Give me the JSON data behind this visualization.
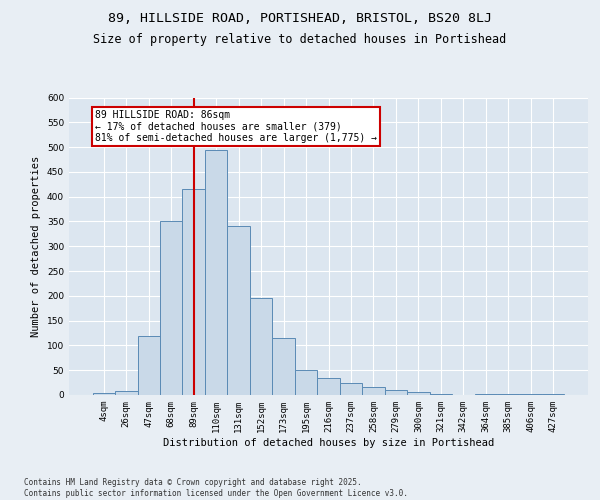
{
  "title_line1": "89, HILLSIDE ROAD, PORTISHEAD, BRISTOL, BS20 8LJ",
  "title_line2": "Size of property relative to detached houses in Portishead",
  "xlabel": "Distribution of detached houses by size in Portishead",
  "ylabel": "Number of detached properties",
  "footer": "Contains HM Land Registry data © Crown copyright and database right 2025.\nContains public sector information licensed under the Open Government Licence v3.0.",
  "bin_labels": [
    "4sqm",
    "26sqm",
    "47sqm",
    "68sqm",
    "89sqm",
    "110sqm",
    "131sqm",
    "152sqm",
    "173sqm",
    "195sqm",
    "216sqm",
    "237sqm",
    "258sqm",
    "279sqm",
    "300sqm",
    "321sqm",
    "342sqm",
    "364sqm",
    "385sqm",
    "406sqm",
    "427sqm"
  ],
  "bar_values": [
    5,
    8,
    120,
    350,
    415,
    495,
    340,
    195,
    115,
    50,
    35,
    25,
    16,
    10,
    7,
    2,
    0,
    3,
    2,
    2,
    2
  ],
  "bar_color": "#c9d9e8",
  "bar_edge_color": "#5a8ab5",
  "property_line_x": 4,
  "annotation_text": "89 HILLSIDE ROAD: 86sqm\n← 17% of detached houses are smaller (379)\n81% of semi-detached houses are larger (1,775) →",
  "annotation_box_color": "#ffffff",
  "annotation_box_edge": "#cc0000",
  "vline_color": "#cc0000",
  "ylim": [
    0,
    600
  ],
  "yticks": [
    0,
    50,
    100,
    150,
    200,
    250,
    300,
    350,
    400,
    450,
    500,
    550,
    600
  ],
  "background_color": "#e8eef4",
  "plot_bg_color": "#dce6f0",
  "grid_color": "#ffffff",
  "title_fontsize": 9.5,
  "subtitle_fontsize": 8.5,
  "axis_label_fontsize": 7.5,
  "tick_fontsize": 6.5,
  "annotation_fontsize": 7.0,
  "footer_fontsize": 5.5
}
